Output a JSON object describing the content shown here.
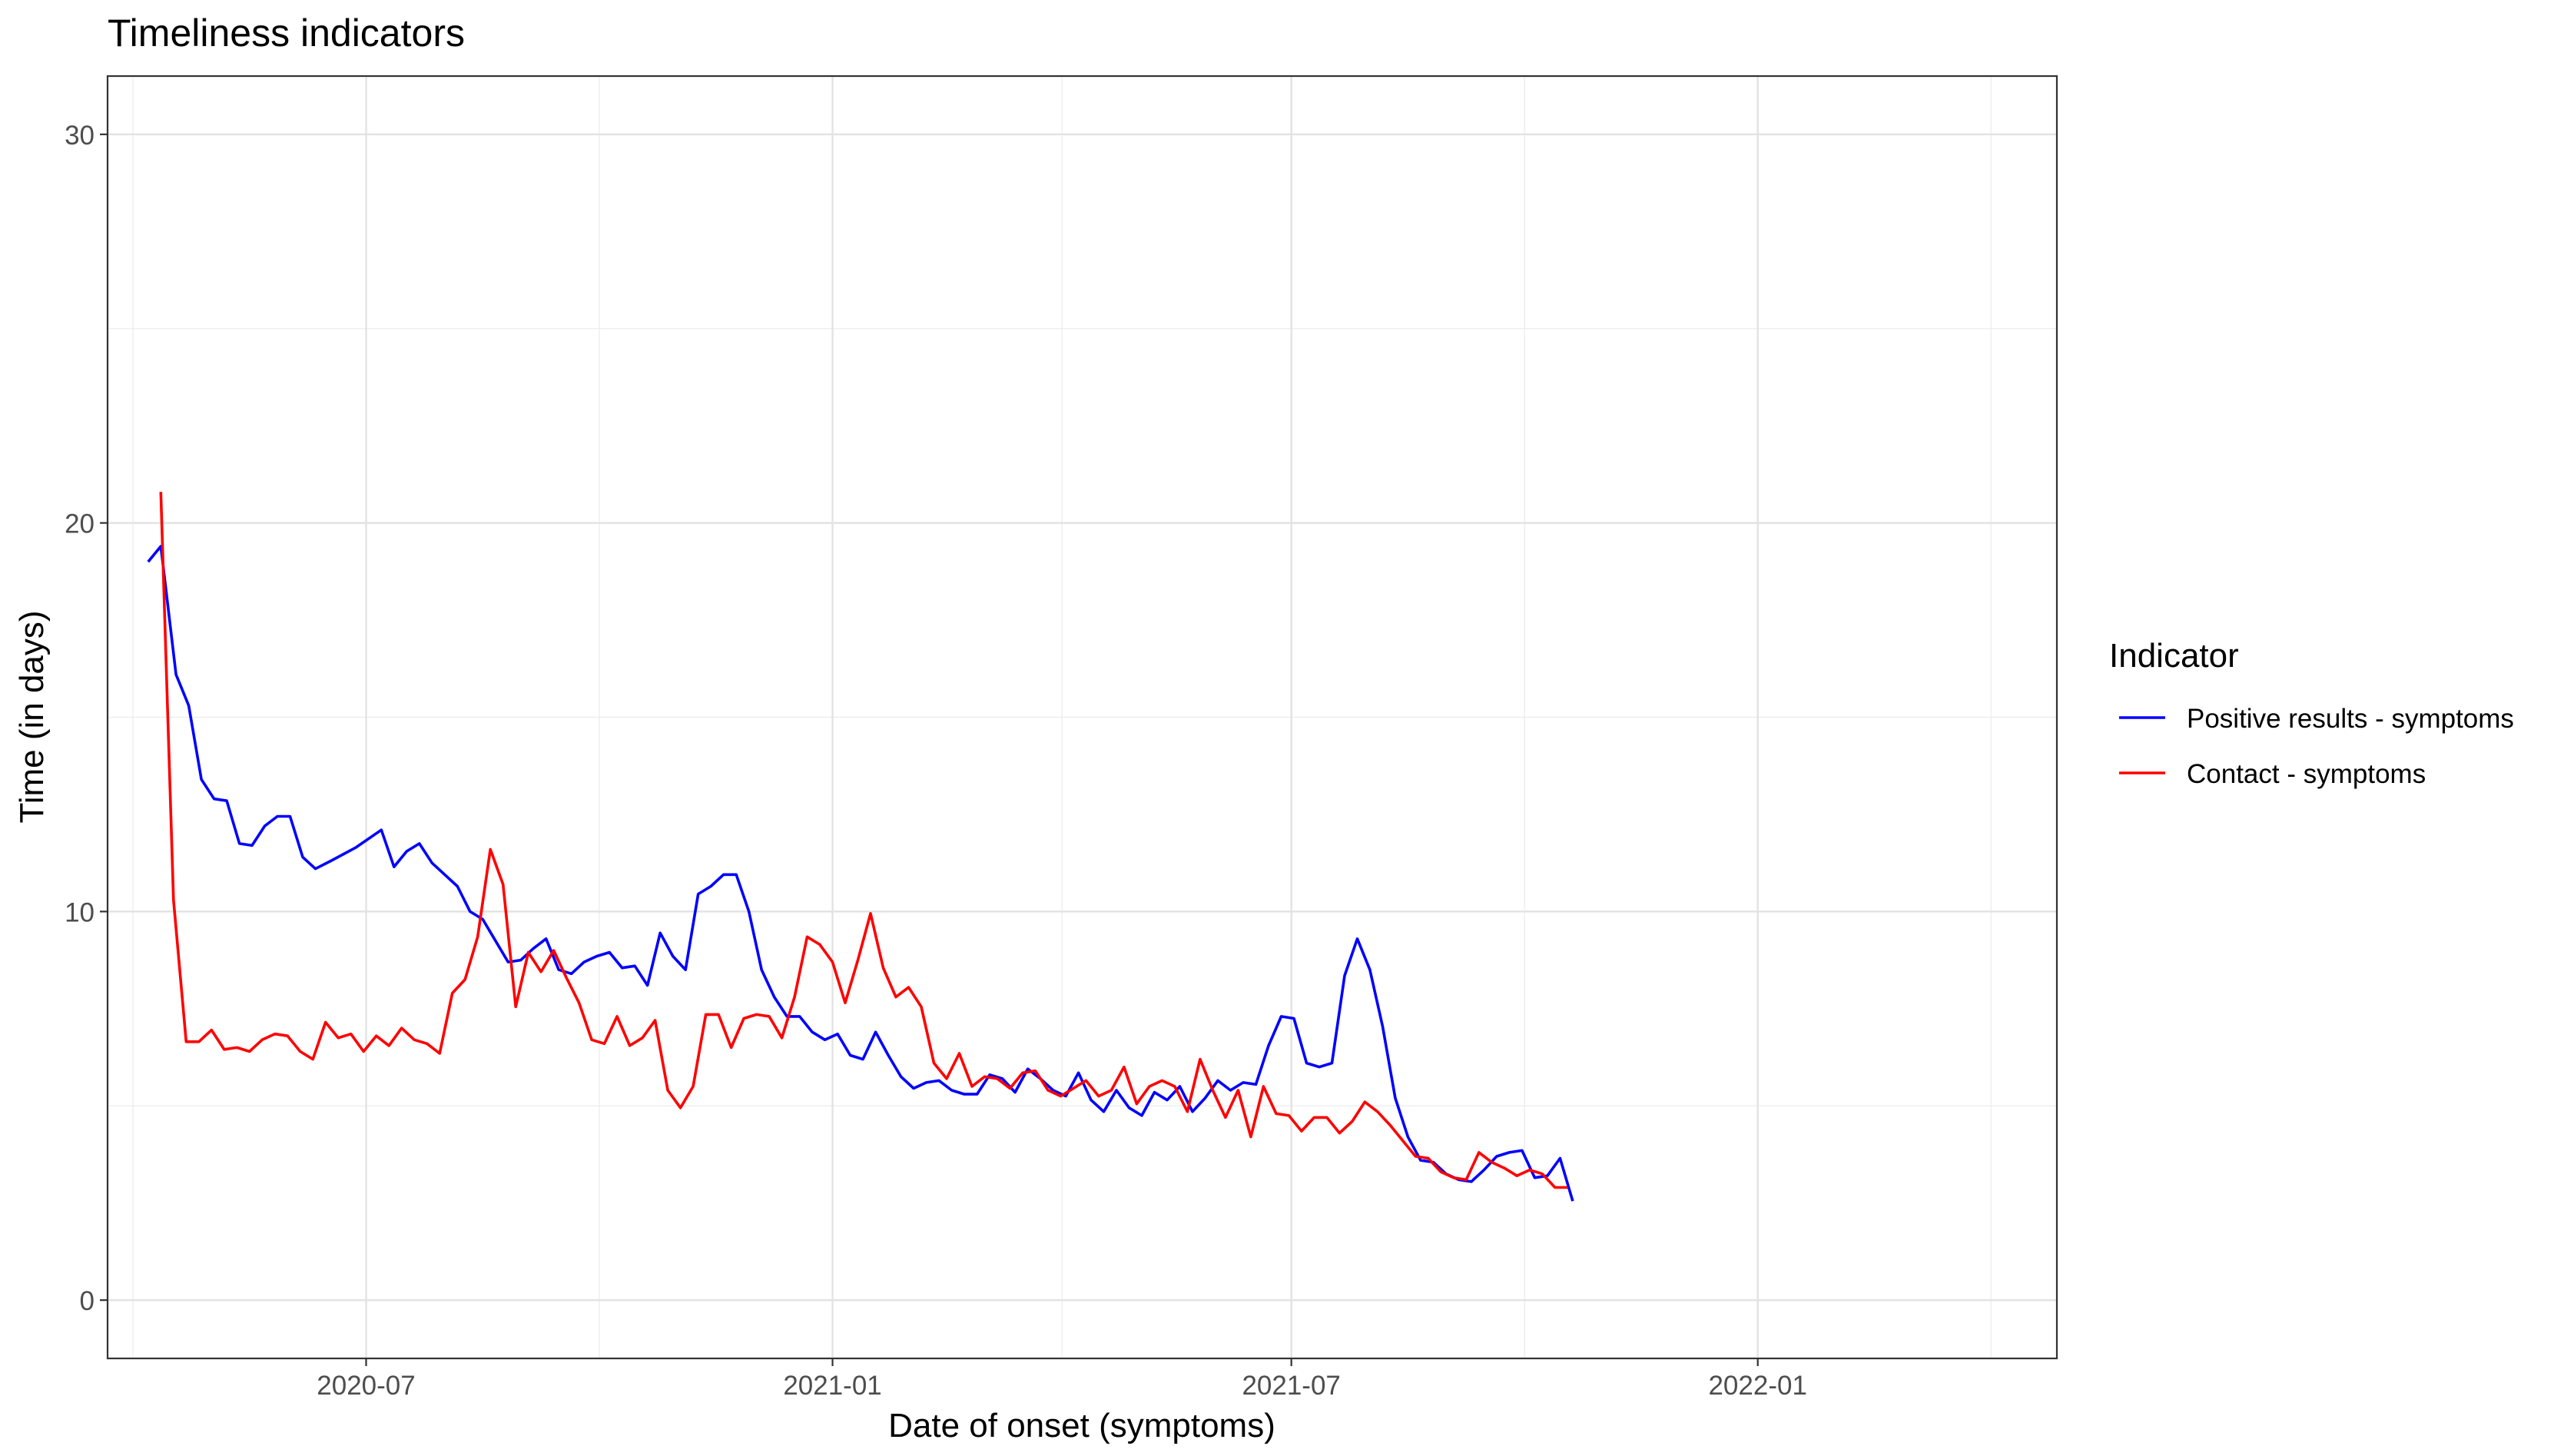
{
  "chart_data": {
    "type": "line",
    "title": "Timeliness indicators",
    "xlabel": "Date of onset (symptoms)",
    "ylabel": "Time (in days)",
    "xlim": [
      "2020-03-21",
      "2022-04-29"
    ],
    "ylim": [
      -1.5,
      31.5
    ],
    "x_ticks": [
      "2020-07-01",
      "2021-01-01",
      "2021-07-01",
      "2022-01-01"
    ],
    "x_tick_labels": [
      "2020-07",
      "2021-01",
      "2021-07",
      "2022-01"
    ],
    "y_ticks": [
      0,
      10,
      20,
      30
    ],
    "y_tick_labels": [
      "0",
      "10",
      "20",
      "30"
    ],
    "grid": true,
    "legend": {
      "title": "Indicator",
      "position": "right"
    },
    "series": [
      {
        "name": "Positive results - symptoms",
        "color": "#0000ff",
        "points": [
          [
            "2020-04-06",
            19.0
          ],
          [
            "2020-04-11",
            19.4
          ],
          [
            "2020-04-17",
            16.1
          ],
          [
            "2020-04-22",
            15.3
          ],
          [
            "2020-04-27",
            13.4
          ],
          [
            "2020-05-02",
            12.9
          ],
          [
            "2020-05-07",
            12.85
          ],
          [
            "2020-05-12",
            11.75
          ],
          [
            "2020-05-17",
            11.7
          ],
          [
            "2020-05-22",
            12.2
          ],
          [
            "2020-05-27",
            12.45
          ],
          [
            "2020-06-01",
            12.45
          ],
          [
            "2020-06-06",
            11.4
          ],
          [
            "2020-06-11",
            11.1
          ],
          [
            "2020-06-17",
            11.3
          ],
          [
            "2020-06-27",
            11.65
          ],
          [
            "2020-07-07",
            12.1
          ],
          [
            "2020-07-12",
            11.15
          ],
          [
            "2020-07-17",
            11.55
          ],
          [
            "2020-07-22",
            11.75
          ],
          [
            "2020-07-27",
            11.25
          ],
          [
            "2020-08-06",
            10.65
          ],
          [
            "2020-08-11",
            10.0
          ],
          [
            "2020-08-16",
            9.8
          ],
          [
            "2020-08-21",
            9.25
          ],
          [
            "2020-08-26",
            8.7
          ],
          [
            "2020-08-31",
            8.75
          ],
          [
            "2020-09-05",
            9.05
          ],
          [
            "2020-09-10",
            9.3
          ],
          [
            "2020-09-15",
            8.5
          ],
          [
            "2020-09-20",
            8.4
          ],
          [
            "2020-09-25",
            8.7
          ],
          [
            "2020-09-30",
            8.85
          ],
          [
            "2020-10-05",
            8.95
          ],
          [
            "2020-10-10",
            8.55
          ],
          [
            "2020-10-15",
            8.6
          ],
          [
            "2020-10-20",
            8.1
          ],
          [
            "2020-10-25",
            9.45
          ],
          [
            "2020-10-30",
            8.85
          ],
          [
            "2020-11-04",
            8.5
          ],
          [
            "2020-11-09",
            10.45
          ],
          [
            "2020-11-14",
            10.65
          ],
          [
            "2020-11-19",
            10.95
          ],
          [
            "2020-11-24",
            10.95
          ],
          [
            "2020-11-29",
            10.0
          ],
          [
            "2020-12-04",
            8.5
          ],
          [
            "2020-12-09",
            7.8
          ],
          [
            "2020-12-14",
            7.3
          ],
          [
            "2020-12-19",
            7.3
          ],
          [
            "2020-12-24",
            6.9
          ],
          [
            "2020-12-29",
            6.7
          ],
          [
            "2021-01-03",
            6.85
          ],
          [
            "2021-01-08",
            6.3
          ],
          [
            "2021-01-13",
            6.2
          ],
          [
            "2021-01-18",
            6.9
          ],
          [
            "2021-01-23",
            6.3
          ],
          [
            "2021-01-28",
            5.75
          ],
          [
            "2021-02-02",
            5.45
          ],
          [
            "2021-02-07",
            5.6
          ],
          [
            "2021-02-12",
            5.65
          ],
          [
            "2021-02-17",
            5.4
          ],
          [
            "2021-02-22",
            5.3
          ],
          [
            "2021-02-27",
            5.3
          ],
          [
            "2021-03-04",
            5.8
          ],
          [
            "2021-03-09",
            5.7
          ],
          [
            "2021-03-14",
            5.35
          ],
          [
            "2021-03-19",
            5.95
          ],
          [
            "2021-03-24",
            5.7
          ],
          [
            "2021-03-29",
            5.4
          ],
          [
            "2021-04-03",
            5.25
          ],
          [
            "2021-04-08",
            5.85
          ],
          [
            "2021-04-13",
            5.15
          ],
          [
            "2021-04-18",
            4.85
          ],
          [
            "2021-04-23",
            5.4
          ],
          [
            "2021-04-28",
            4.95
          ],
          [
            "2021-05-03",
            4.75
          ],
          [
            "2021-05-08",
            5.35
          ],
          [
            "2021-05-13",
            5.15
          ],
          [
            "2021-05-18",
            5.5
          ],
          [
            "2021-05-23",
            4.85
          ],
          [
            "2021-05-28",
            5.2
          ],
          [
            "2021-06-02",
            5.65
          ],
          [
            "2021-06-07",
            5.4
          ],
          [
            "2021-06-12",
            5.6
          ],
          [
            "2021-06-17",
            5.55
          ],
          [
            "2021-06-22",
            6.55
          ],
          [
            "2021-06-27",
            7.3
          ],
          [
            "2021-07-02",
            7.25
          ],
          [
            "2021-07-07",
            6.1
          ],
          [
            "2021-07-12",
            6.0
          ],
          [
            "2021-07-17",
            6.1
          ],
          [
            "2021-07-22",
            8.35
          ],
          [
            "2021-07-27",
            9.3
          ],
          [
            "2021-08-01",
            8.5
          ],
          [
            "2021-08-06",
            7.05
          ],
          [
            "2021-08-11",
            5.2
          ],
          [
            "2021-08-16",
            4.2
          ],
          [
            "2021-08-21",
            3.6
          ],
          [
            "2021-08-26",
            3.55
          ],
          [
            "2021-08-31",
            3.25
          ],
          [
            "2021-09-05",
            3.1
          ],
          [
            "2021-09-10",
            3.05
          ],
          [
            "2021-09-15",
            3.35
          ],
          [
            "2021-09-20",
            3.7
          ],
          [
            "2021-09-25",
            3.8
          ],
          [
            "2021-09-30",
            3.85
          ],
          [
            "2021-10-05",
            3.15
          ],
          [
            "2021-10-10",
            3.2
          ],
          [
            "2021-10-15",
            3.65
          ],
          [
            "2021-10-20",
            2.55
          ]
        ]
      },
      {
        "name": "Contact - symptoms",
        "color": "#ff0000",
        "points": [
          [
            "2020-04-11",
            20.8
          ],
          [
            "2020-04-16",
            10.3
          ],
          [
            "2020-04-21",
            6.65
          ],
          [
            "2020-04-26",
            6.65
          ],
          [
            "2020-05-01",
            6.95
          ],
          [
            "2020-05-06",
            6.45
          ],
          [
            "2020-05-11",
            6.5
          ],
          [
            "2020-05-16",
            6.4
          ],
          [
            "2020-05-21",
            6.7
          ],
          [
            "2020-05-26",
            6.85
          ],
          [
            "2020-05-31",
            6.8
          ],
          [
            "2020-06-05",
            6.4
          ],
          [
            "2020-06-10",
            6.2
          ],
          [
            "2020-06-15",
            7.15
          ],
          [
            "2020-06-20",
            6.75
          ],
          [
            "2020-06-25",
            6.85
          ],
          [
            "2020-06-30",
            6.4
          ],
          [
            "2020-07-05",
            6.8
          ],
          [
            "2020-07-10",
            6.55
          ],
          [
            "2020-07-15",
            7.0
          ],
          [
            "2020-07-20",
            6.7
          ],
          [
            "2020-07-25",
            6.6
          ],
          [
            "2020-07-30",
            6.35
          ],
          [
            "2020-08-04",
            7.9
          ],
          [
            "2020-08-09",
            8.25
          ],
          [
            "2020-08-14",
            9.35
          ],
          [
            "2020-08-19",
            11.6
          ],
          [
            "2020-08-24",
            10.7
          ],
          [
            "2020-08-29",
            7.55
          ],
          [
            "2020-09-03",
            8.95
          ],
          [
            "2020-09-08",
            8.45
          ],
          [
            "2020-09-13",
            9.0
          ],
          [
            "2020-09-18",
            8.3
          ],
          [
            "2020-09-23",
            7.65
          ],
          [
            "2020-09-28",
            6.7
          ],
          [
            "2020-10-03",
            6.6
          ],
          [
            "2020-10-08",
            7.3
          ],
          [
            "2020-10-13",
            6.55
          ],
          [
            "2020-10-18",
            6.75
          ],
          [
            "2020-10-23",
            7.2
          ],
          [
            "2020-10-28",
            5.4
          ],
          [
            "2020-11-02",
            4.95
          ],
          [
            "2020-11-07",
            5.5
          ],
          [
            "2020-11-12",
            7.35
          ],
          [
            "2020-11-17",
            7.35
          ],
          [
            "2020-11-22",
            6.5
          ],
          [
            "2020-11-27",
            7.25
          ],
          [
            "2020-12-02",
            7.35
          ],
          [
            "2020-12-07",
            7.3
          ],
          [
            "2020-12-12",
            6.75
          ],
          [
            "2020-12-17",
            7.8
          ],
          [
            "2020-12-22",
            9.35
          ],
          [
            "2020-12-27",
            9.15
          ],
          [
            "2021-01-01",
            8.7
          ],
          [
            "2021-01-06",
            7.65
          ],
          [
            "2021-01-11",
            8.75
          ],
          [
            "2021-01-16",
            9.95
          ],
          [
            "2021-01-21",
            8.55
          ],
          [
            "2021-01-26",
            7.8
          ],
          [
            "2021-01-31",
            8.05
          ],
          [
            "2021-02-05",
            7.55
          ],
          [
            "2021-02-10",
            6.1
          ],
          [
            "2021-02-15",
            5.7
          ],
          [
            "2021-02-20",
            6.35
          ],
          [
            "2021-02-25",
            5.5
          ],
          [
            "2021-03-02",
            5.75
          ],
          [
            "2021-03-07",
            5.7
          ],
          [
            "2021-03-12",
            5.45
          ],
          [
            "2021-03-17",
            5.85
          ],
          [
            "2021-03-22",
            5.9
          ],
          [
            "2021-03-27",
            5.4
          ],
          [
            "2021-04-01",
            5.25
          ],
          [
            "2021-04-06",
            5.45
          ],
          [
            "2021-04-11",
            5.65
          ],
          [
            "2021-04-16",
            5.25
          ],
          [
            "2021-04-21",
            5.4
          ],
          [
            "2021-04-26",
            6.0
          ],
          [
            "2021-05-01",
            5.05
          ],
          [
            "2021-05-06",
            5.5
          ],
          [
            "2021-05-11",
            5.65
          ],
          [
            "2021-05-16",
            5.5
          ],
          [
            "2021-05-21",
            4.85
          ],
          [
            "2021-05-26",
            6.2
          ],
          [
            "2021-05-31",
            5.4
          ],
          [
            "2021-06-05",
            4.7
          ],
          [
            "2021-06-10",
            5.4
          ],
          [
            "2021-06-15",
            4.2
          ],
          [
            "2021-06-20",
            5.5
          ],
          [
            "2021-06-25",
            4.8
          ],
          [
            "2021-06-30",
            4.75
          ],
          [
            "2021-07-05",
            4.35
          ],
          [
            "2021-07-10",
            4.7
          ],
          [
            "2021-07-15",
            4.7
          ],
          [
            "2021-07-20",
            4.3
          ],
          [
            "2021-07-25",
            4.6
          ],
          [
            "2021-07-30",
            5.1
          ],
          [
            "2021-08-04",
            4.85
          ],
          [
            "2021-08-09",
            4.5
          ],
          [
            "2021-08-14",
            4.1
          ],
          [
            "2021-08-19",
            3.7
          ],
          [
            "2021-08-24",
            3.65
          ],
          [
            "2021-08-29",
            3.3
          ],
          [
            "2021-09-03",
            3.15
          ],
          [
            "2021-09-08",
            3.1
          ],
          [
            "2021-09-13",
            3.8
          ],
          [
            "2021-09-18",
            3.55
          ],
          [
            "2021-09-23",
            3.4
          ],
          [
            "2021-09-28",
            3.2
          ],
          [
            "2021-10-03",
            3.35
          ],
          [
            "2021-10-08",
            3.25
          ],
          [
            "2021-10-13",
            2.9
          ],
          [
            "2021-10-18",
            2.9
          ]
        ]
      }
    ]
  }
}
